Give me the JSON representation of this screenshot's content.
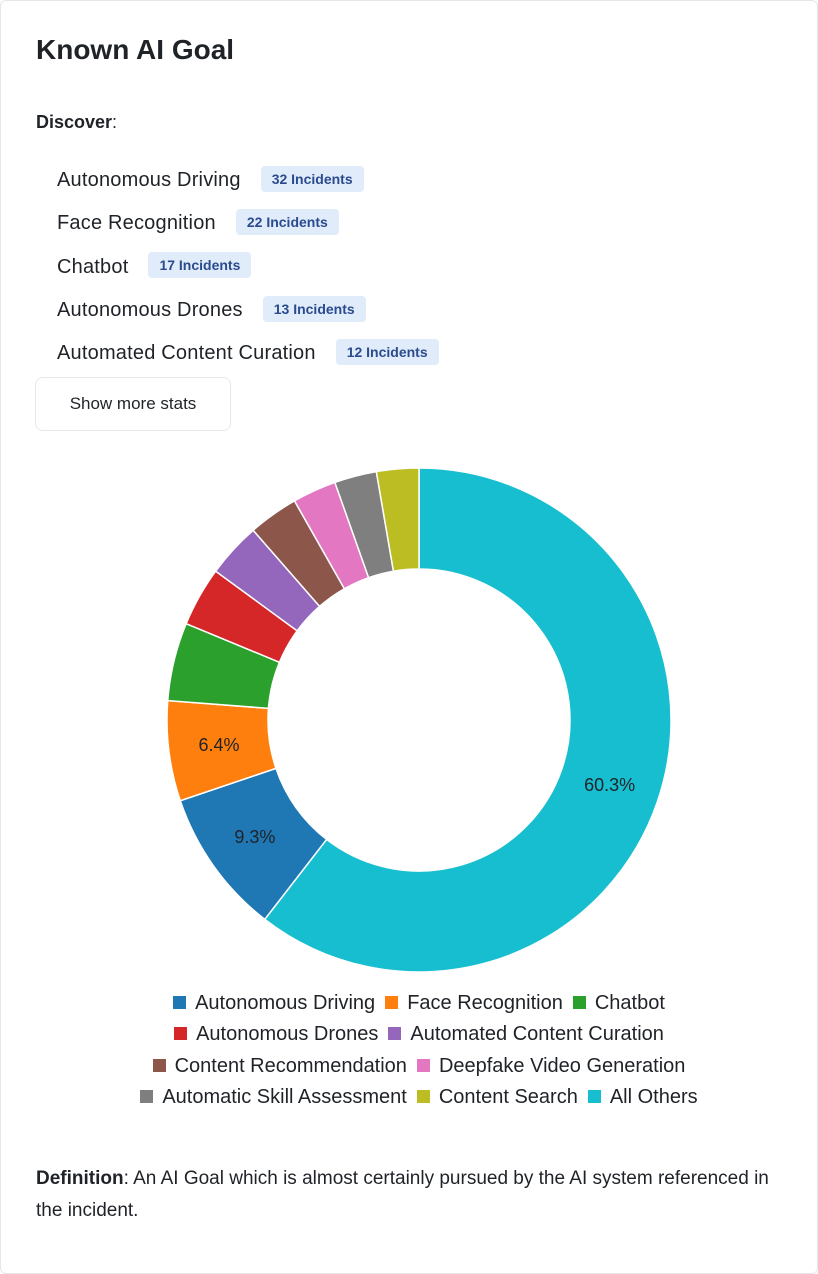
{
  "title": "Known AI Goal",
  "discover_label": "Discover",
  "stats": [
    {
      "name": "Autonomous Driving",
      "badge": "32 Incidents"
    },
    {
      "name": "Face Recognition",
      "badge": "22 Incidents"
    },
    {
      "name": "Chatbot",
      "badge": "17 Incidents"
    },
    {
      "name": "Autonomous Drones",
      "badge": "13 Incidents"
    },
    {
      "name": "Automated Content Curation",
      "badge": "12 Incidents"
    }
  ],
  "more_button": "Show more stats",
  "chart_data": {
    "type": "pie",
    "variant": "donut",
    "categories": [
      "Autonomous Driving",
      "Face Recognition",
      "Chatbot",
      "Autonomous Drones",
      "Automated Content Curation",
      "Content Recommendation",
      "Deepfake Video Generation",
      "Automatic Skill Assessment",
      "Content Search",
      "All Others"
    ],
    "values": [
      9.3,
      6.4,
      5.0,
      3.8,
      3.5,
      3.2,
      2.8,
      2.7,
      2.7,
      60.3
    ],
    "data_labels": [
      "9.3%",
      "6.4%",
      "",
      "",
      "",
      "",
      "",
      "",
      "",
      "60.3%"
    ],
    "colors": [
      "#1f77b4",
      "#ff7f0e",
      "#2ca02c",
      "#d62728",
      "#9467bd",
      "#8c564b",
      "#e377c2",
      "#7f7f7f",
      "#bcbd22",
      "#17becf"
    ],
    "legend_position": "bottom"
  },
  "definition": {
    "label": "Definition",
    "text": ": An AI Goal which is almost certainly pursued by the AI system referenced in the incident."
  }
}
